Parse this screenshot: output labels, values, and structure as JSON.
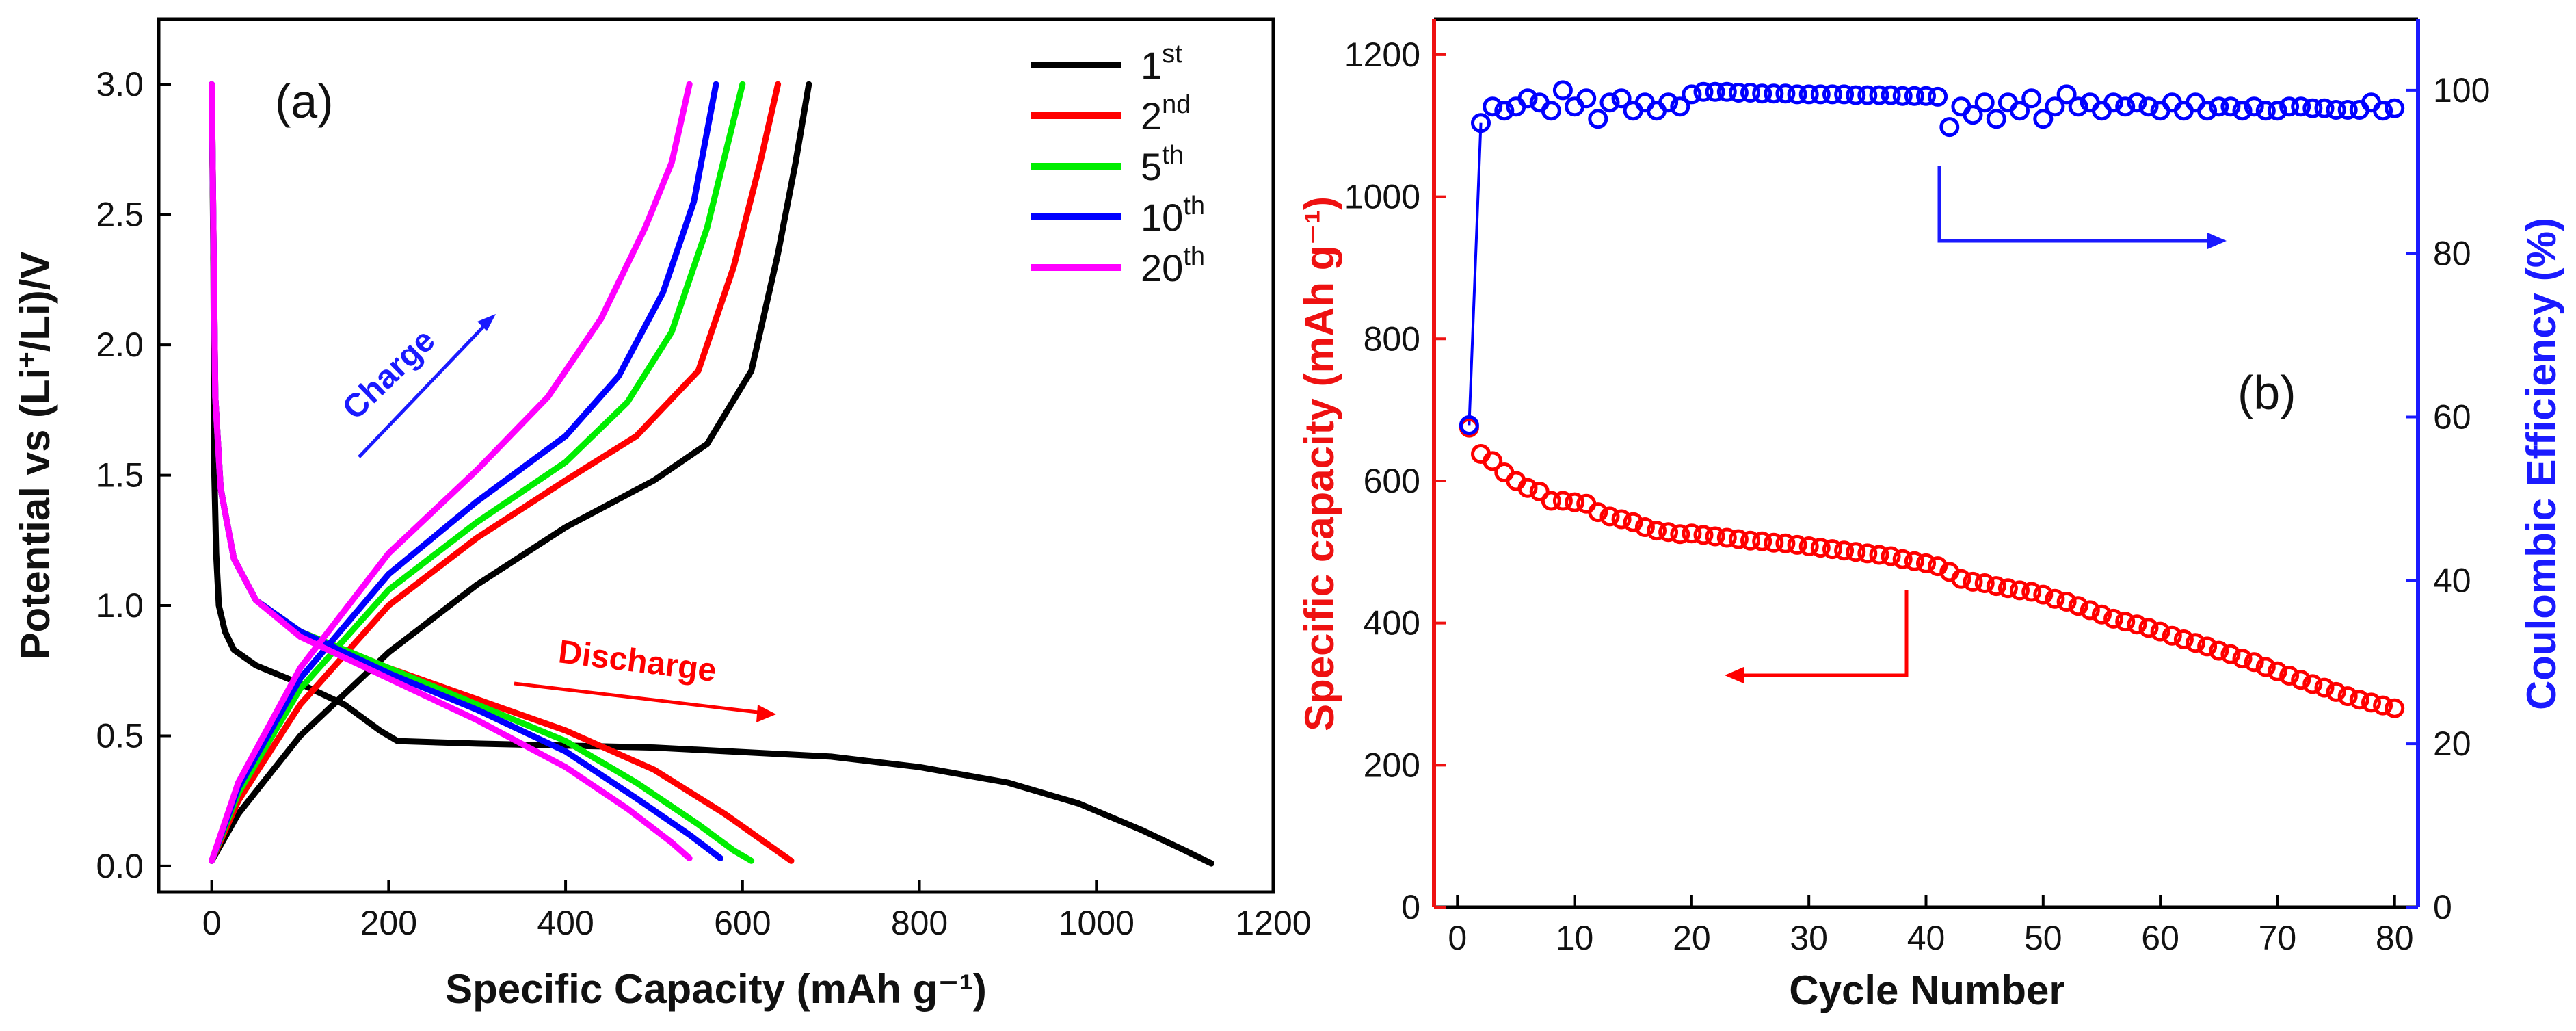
{
  "figure": {
    "colors": {
      "black": "#000000",
      "red": "#ff0000",
      "green": "#00ee00",
      "blue": "#0000ff",
      "magenta": "#ff00ff",
      "red_axis": "#ee1111",
      "blue_axis": "#1a1aff"
    }
  },
  "chart_data": [
    {
      "panel_label": "(a)",
      "type": "line",
      "xlabel": "Specific Capacity (mAh g⁻¹)",
      "ylabel": "Potential vs (Li⁺/Li)/V",
      "xlim": [
        -60,
        1200
      ],
      "ylim": [
        -0.1,
        3.25
      ],
      "xticks": [
        0,
        200,
        400,
        600,
        800,
        1000,
        1200
      ],
      "yticks": [
        0.0,
        0.5,
        1.0,
        1.5,
        2.0,
        2.5,
        3.0
      ],
      "xtick_labels": [
        "0",
        "200",
        "400",
        "600",
        "800",
        "1000",
        "1200"
      ],
      "ytick_labels": [
        "0.0",
        "0.5",
        "1.0",
        "1.5",
        "2.0",
        "2.5",
        "3.0"
      ],
      "legend_position": "top-right",
      "annotations": [
        {
          "text": "Charge",
          "color": "blue"
        },
        {
          "text": "Discharge",
          "color": "red"
        }
      ],
      "series": [
        {
          "name": "1",
          "sup": "st",
          "color": "black",
          "discharge": [
            [
              0,
              3.0
            ],
            [
              2,
              2.3
            ],
            [
              3,
              1.5
            ],
            [
              5,
              1.2
            ],
            [
              8,
              1.0
            ],
            [
              15,
              0.9
            ],
            [
              25,
              0.83
            ],
            [
              50,
              0.77
            ],
            [
              100,
              0.7
            ],
            [
              150,
              0.62
            ],
            [
              190,
              0.52
            ],
            [
              210,
              0.48
            ],
            [
              300,
              0.47
            ],
            [
              500,
              0.455
            ],
            [
              700,
              0.42
            ],
            [
              800,
              0.38
            ],
            [
              900,
              0.32
            ],
            [
              980,
              0.24
            ],
            [
              1050,
              0.14
            ],
            [
              1100,
              0.06
            ],
            [
              1130,
              0.01
            ]
          ],
          "charge": [
            [
              0,
              0.02
            ],
            [
              30,
              0.2
            ],
            [
              100,
              0.5
            ],
            [
              200,
              0.82
            ],
            [
              300,
              1.08
            ],
            [
              400,
              1.3
            ],
            [
              500,
              1.48
            ],
            [
              560,
              1.62
            ],
            [
              610,
              1.9
            ],
            [
              640,
              2.35
            ],
            [
              660,
              2.7
            ],
            [
              675,
              3.0
            ]
          ]
        },
        {
          "name": "2",
          "sup": "nd",
          "color": "red",
          "discharge": [
            [
              0,
              3.0
            ],
            [
              2,
              2.4
            ],
            [
              4,
              1.8
            ],
            [
              10,
              1.45
            ],
            [
              25,
              1.18
            ],
            [
              50,
              1.02
            ],
            [
              100,
              0.9
            ],
            [
              200,
              0.76
            ],
            [
              300,
              0.64
            ],
            [
              400,
              0.52
            ],
            [
              500,
              0.37
            ],
            [
              580,
              0.2
            ],
            [
              630,
              0.08
            ],
            [
              655,
              0.02
            ]
          ],
          "charge": [
            [
              0,
              0.02
            ],
            [
              30,
              0.25
            ],
            [
              100,
              0.62
            ],
            [
              200,
              1.0
            ],
            [
              300,
              1.26
            ],
            [
              400,
              1.48
            ],
            [
              480,
              1.65
            ],
            [
              550,
              1.9
            ],
            [
              590,
              2.3
            ],
            [
              620,
              2.7
            ],
            [
              640,
              3.0
            ]
          ]
        },
        {
          "name": "5",
          "sup": "th",
          "color": "green",
          "discharge": [
            [
              0,
              3.0
            ],
            [
              2,
              2.4
            ],
            [
              4,
              1.8
            ],
            [
              10,
              1.45
            ],
            [
              25,
              1.18
            ],
            [
              50,
              1.02
            ],
            [
              100,
              0.9
            ],
            [
              200,
              0.76
            ],
            [
              300,
              0.62
            ],
            [
              400,
              0.48
            ],
            [
              480,
              0.32
            ],
            [
              550,
              0.16
            ],
            [
              590,
              0.06
            ],
            [
              610,
              0.02
            ]
          ],
          "charge": [
            [
              0,
              0.02
            ],
            [
              30,
              0.28
            ],
            [
              100,
              0.68
            ],
            [
              200,
              1.06
            ],
            [
              300,
              1.32
            ],
            [
              400,
              1.55
            ],
            [
              470,
              1.78
            ],
            [
              520,
              2.05
            ],
            [
              560,
              2.45
            ],
            [
              600,
              3.0
            ]
          ]
        },
        {
          "name": "10",
          "sup": "th",
          "color": "blue",
          "discharge": [
            [
              0,
              3.0
            ],
            [
              2,
              2.4
            ],
            [
              4,
              1.8
            ],
            [
              10,
              1.45
            ],
            [
              25,
              1.18
            ],
            [
              50,
              1.02
            ],
            [
              100,
              0.9
            ],
            [
              200,
              0.74
            ],
            [
              300,
              0.6
            ],
            [
              400,
              0.44
            ],
            [
              480,
              0.26
            ],
            [
              540,
              0.12
            ],
            [
              575,
              0.03
            ]
          ],
          "charge": [
            [
              0,
              0.02
            ],
            [
              30,
              0.3
            ],
            [
              100,
              0.72
            ],
            [
              200,
              1.12
            ],
            [
              300,
              1.4
            ],
            [
              400,
              1.65
            ],
            [
              460,
              1.88
            ],
            [
              510,
              2.2
            ],
            [
              545,
              2.55
            ],
            [
              570,
              3.0
            ]
          ]
        },
        {
          "name": "20",
          "sup": "th",
          "color": "magenta",
          "discharge": [
            [
              0,
              3.0
            ],
            [
              2,
              2.4
            ],
            [
              4,
              1.8
            ],
            [
              10,
              1.45
            ],
            [
              25,
              1.18
            ],
            [
              50,
              1.02
            ],
            [
              100,
              0.88
            ],
            [
              200,
              0.72
            ],
            [
              300,
              0.56
            ],
            [
              400,
              0.38
            ],
            [
              470,
              0.22
            ],
            [
              520,
              0.09
            ],
            [
              540,
              0.03
            ]
          ],
          "charge": [
            [
              0,
              0.02
            ],
            [
              30,
              0.32
            ],
            [
              100,
              0.76
            ],
            [
              200,
              1.2
            ],
            [
              300,
              1.52
            ],
            [
              380,
              1.8
            ],
            [
              440,
              2.1
            ],
            [
              490,
              2.45
            ],
            [
              520,
              2.7
            ],
            [
              540,
              3.0
            ]
          ]
        }
      ]
    },
    {
      "panel_label": "(b)",
      "type": "scatter",
      "xlabel": "Cycle Number",
      "ylabel_left": "Specific capacity (mAh g⁻¹)",
      "ylabel_right": "Coulombic Efficiency (%)",
      "xlim": [
        -2,
        82
      ],
      "ylim_left": [
        0,
        1250
      ],
      "ylim_right": [
        0,
        108.7
      ],
      "xticks": [
        0,
        10,
        20,
        30,
        40,
        50,
        60,
        70,
        80
      ],
      "xtick_labels": [
        "0",
        "10",
        "20",
        "30",
        "40",
        "50",
        "60",
        "70",
        "80"
      ],
      "yticks_left": [
        0,
        200,
        400,
        600,
        800,
        1000,
        1200
      ],
      "ytick_labels_left": [
        "0",
        "200",
        "400",
        "600",
        "800",
        "1000",
        "1200"
      ],
      "yticks_right": [
        0,
        20,
        40,
        60,
        80,
        100
      ],
      "ytick_labels_right": [
        "0",
        "20",
        "40",
        "60",
        "80",
        "100"
      ],
      "series": [
        {
          "name": "Specific capacity",
          "axis": "left",
          "color": "red",
          "x": [
            1,
            2,
            3,
            4,
            5,
            6,
            7,
            8,
            9,
            10,
            11,
            12,
            13,
            14,
            15,
            16,
            17,
            18,
            19,
            20,
            21,
            22,
            23,
            24,
            25,
            26,
            27,
            28,
            29,
            30,
            31,
            32,
            33,
            34,
            35,
            36,
            37,
            38,
            39,
            40,
            41,
            42,
            43,
            44,
            45,
            46,
            47,
            48,
            49,
            50,
            51,
            52,
            53,
            54,
            55,
            56,
            57,
            58,
            59,
            60,
            61,
            62,
            63,
            64,
            65,
            66,
            67,
            68,
            69,
            70,
            71,
            72,
            73,
            74,
            75,
            76,
            77,
            78,
            79,
            80
          ],
          "values": [
            675,
            638,
            628,
            612,
            600,
            590,
            585,
            572,
            572,
            570,
            568,
            556,
            550,
            546,
            542,
            535,
            530,
            528,
            525,
            526,
            524,
            522,
            520,
            518,
            516,
            515,
            513,
            512,
            510,
            508,
            506,
            504,
            502,
            500,
            498,
            496,
            494,
            490,
            487,
            484,
            480,
            472,
            462,
            458,
            456,
            452,
            449,
            446,
            444,
            440,
            434,
            430,
            424,
            418,
            412,
            406,
            402,
            398,
            393,
            388,
            382,
            377,
            372,
            367,
            361,
            356,
            350,
            345,
            338,
            332,
            326,
            320,
            314,
            309,
            303,
            297,
            292,
            288,
            284,
            280
          ]
        },
        {
          "name": "Coulombic Efficiency",
          "axis": "right",
          "color": "blue",
          "x": [
            1,
            2,
            3,
            4,
            5,
            6,
            7,
            8,
            9,
            10,
            11,
            12,
            13,
            14,
            15,
            16,
            17,
            18,
            19,
            20,
            21,
            22,
            23,
            24,
            25,
            26,
            27,
            28,
            29,
            30,
            31,
            32,
            33,
            34,
            35,
            36,
            37,
            38,
            39,
            40,
            41,
            42,
            43,
            44,
            45,
            46,
            47,
            48,
            49,
            50,
            51,
            52,
            53,
            54,
            55,
            56,
            57,
            58,
            59,
            60,
            61,
            62,
            63,
            64,
            65,
            66,
            67,
            68,
            69,
            70,
            71,
            72,
            73,
            74,
            75,
            76,
            77,
            78,
            79,
            80
          ],
          "values": [
            59,
            96,
            98,
            97.5,
            98,
            99,
            98.5,
            97.5,
            100,
            98,
            99,
            96.5,
            98.5,
            99,
            97.5,
            98.5,
            97.5,
            98.5,
            98,
            99.5,
            99.8,
            99.8,
            99.8,
            99.7,
            99.7,
            99.6,
            99.6,
            99.6,
            99.5,
            99.5,
            99.5,
            99.5,
            99.5,
            99.4,
            99.4,
            99.4,
            99.4,
            99.3,
            99.3,
            99.3,
            99.2,
            95.5,
            98,
            97,
            98.5,
            96.5,
            98.5,
            97.5,
            99,
            96.5,
            98,
            99.5,
            98,
            98.5,
            97.5,
            98.5,
            98,
            98.5,
            98,
            97.5,
            98.5,
            97.5,
            98.5,
            97.5,
            98,
            98,
            97.5,
            98,
            97.5,
            97.5,
            98,
            98,
            97.8,
            97.8,
            97.6,
            97.6,
            97.6,
            98.5,
            97.5,
            97.8
          ]
        }
      ],
      "annotations": [
        {
          "text": "arrow to right axis",
          "color": "blue"
        },
        {
          "text": "arrow to left axis",
          "color": "red"
        }
      ]
    }
  ],
  "legend": {
    "entries": [
      {
        "num": "1",
        "sup": "st",
        "color": "black"
      },
      {
        "num": "2",
        "sup": "nd",
        "color": "red"
      },
      {
        "num": "5",
        "sup": "th",
        "color": "green"
      },
      {
        "num": "10",
        "sup": "th",
        "color": "blue"
      },
      {
        "num": "20",
        "sup": "th",
        "color": "magenta"
      }
    ]
  },
  "labels_a": {
    "panel": "(a)",
    "charge": "Charge",
    "discharge": "Discharge",
    "x_title": "Specific Capacity (mAh g⁻¹)",
    "y_title_main": "Potential vs (Li",
    "y_title_sup": "+",
    "y_title_end": "/Li)/V"
  },
  "labels_b": {
    "panel": "(b)",
    "x_title": "Cycle Number",
    "y_left_title": "Specific capacity (mAh g⁻¹)",
    "y_right_title": "Coulombic Efficiency (%)"
  }
}
